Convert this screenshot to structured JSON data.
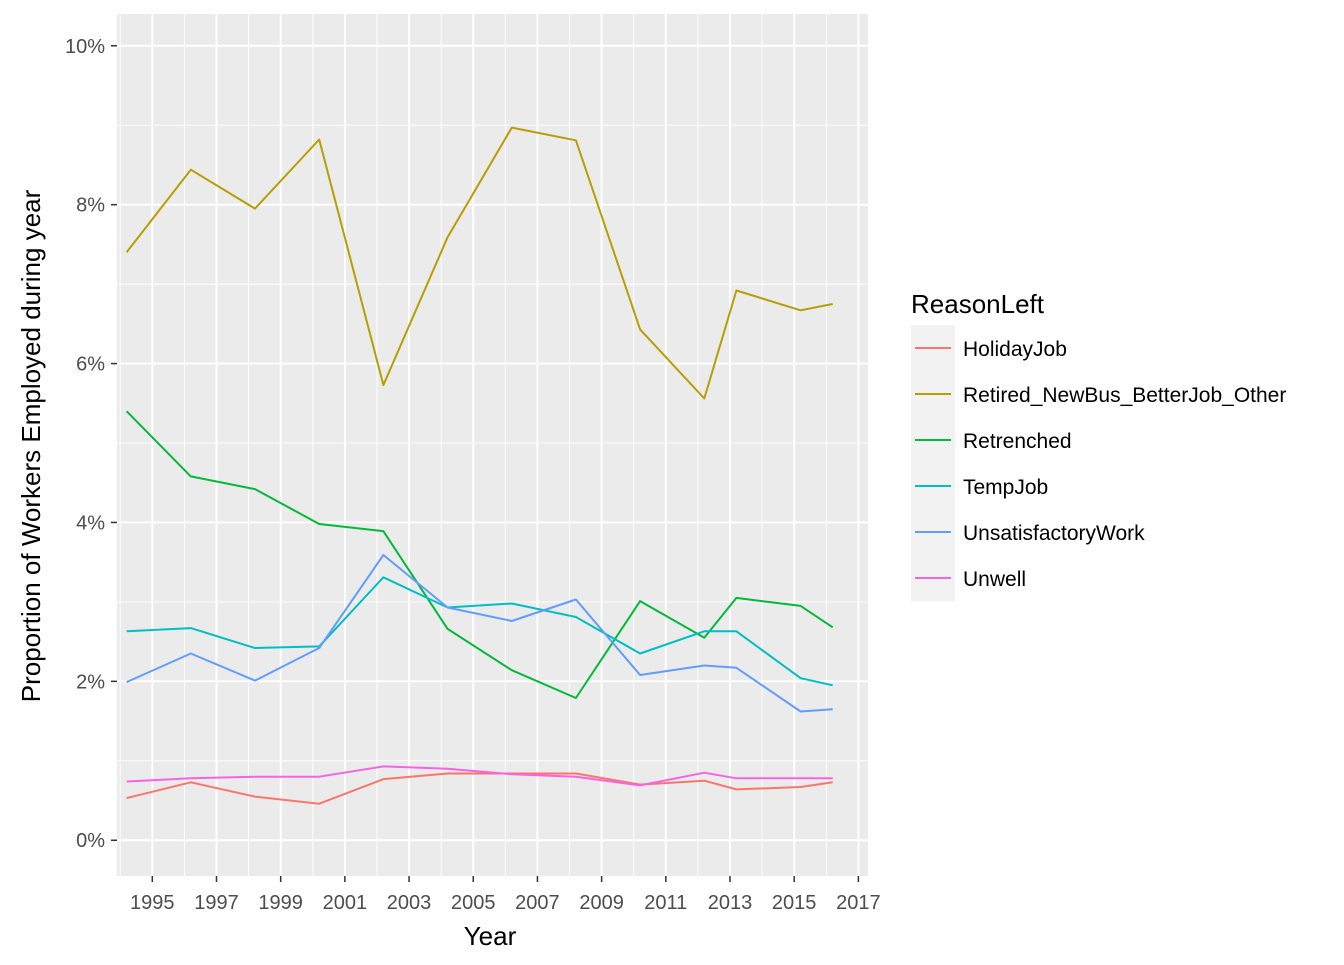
{
  "chart_data": {
    "type": "line",
    "xlabel": "Year",
    "ylabel": "Proportion of Workers Employed during year",
    "xlim": [
      1993.9,
      2017.3
    ],
    "ylim": [
      -0.45,
      10.4
    ],
    "x_ticks": [
      1995,
      1997,
      1999,
      2001,
      2003,
      2005,
      2007,
      2009,
      2011,
      2013,
      2015,
      2017
    ],
    "x_tick_labels": [
      "1995",
      "1997",
      "1999",
      "2001",
      "2003",
      "2005",
      "2007",
      "2009",
      "2011",
      "2013",
      "2015",
      "2017"
    ],
    "y_ticks": [
      0,
      2,
      4,
      6,
      8,
      10
    ],
    "y_tick_labels": [
      "0%",
      "2%",
      "4%",
      "6%",
      "8%",
      "10%"
    ],
    "grid": true,
    "panel_background": "#ebebeb",
    "grid_color": "#ffffff",
    "legend": {
      "title": "ReasonLeft",
      "position": "right"
    },
    "x": [
      1994.2,
      1996.2,
      1998.2,
      2000.2,
      2002.2,
      2004.2,
      2006.2,
      2008.2,
      2010.2,
      2012.2,
      2013.2,
      2015.2,
      2016.2
    ],
    "series": [
      {
        "name": "HolidayJob",
        "color": "#f8766d",
        "values": [
          0.53,
          0.73,
          0.55,
          0.46,
          0.77,
          0.84,
          0.84,
          0.84,
          0.7,
          0.75,
          0.64,
          0.67,
          0.73
        ]
      },
      {
        "name": "Retired_NewBus_BetterJob_Other",
        "color": "#b79f00",
        "values": [
          7.4,
          8.44,
          7.95,
          8.82,
          5.73,
          7.59,
          8.97,
          8.81,
          6.43,
          5.56,
          6.92,
          6.67,
          6.75
        ]
      },
      {
        "name": "Retrenched",
        "color": "#00ba38",
        "values": [
          5.4,
          4.58,
          4.42,
          3.98,
          3.89,
          2.66,
          2.14,
          1.79,
          3.01,
          2.55,
          3.05,
          2.95,
          2.68
        ]
      },
      {
        "name": "TempJob",
        "color": "#00bfc4",
        "values": [
          2.63,
          2.67,
          2.42,
          2.44,
          3.31,
          2.93,
          2.98,
          2.81,
          2.35,
          2.63,
          2.63,
          2.04,
          1.95
        ]
      },
      {
        "name": "UnsatisfactoryWork",
        "color": "#619cff",
        "values": [
          1.99,
          2.35,
          2.01,
          2.42,
          3.59,
          2.93,
          2.76,
          3.03,
          2.08,
          2.2,
          2.17,
          1.62,
          1.65
        ]
      },
      {
        "name": "Unwell",
        "color": "#f564e3",
        "values": [
          0.74,
          0.78,
          0.8,
          0.8,
          0.93,
          0.9,
          0.83,
          0.8,
          0.69,
          0.85,
          0.78,
          0.78,
          0.78
        ]
      }
    ]
  }
}
